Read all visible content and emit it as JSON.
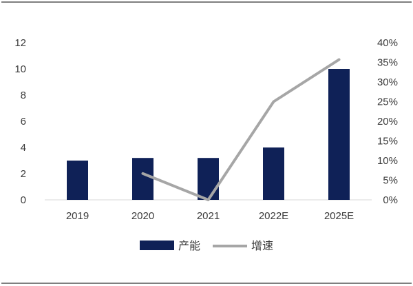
{
  "chart_data": {
    "type": "bar",
    "title": "",
    "xlabel": "",
    "categories": [
      "2019",
      "2020",
      "2021",
      "2022E",
      "2025E"
    ],
    "series": [
      {
        "name": "产能",
        "kind": "bar",
        "axis": "left",
        "color": "#0f2157",
        "values": [
          3.0,
          3.2,
          3.2,
          4.0,
          10.0
        ]
      },
      {
        "name": "增速",
        "kind": "line",
        "axis": "right",
        "color": "#a6a6a6",
        "values": [
          null,
          6.7,
          0.0,
          25.0,
          35.7
        ]
      }
    ],
    "y_left": {
      "ylim": [
        0,
        12
      ],
      "ticks": [
        "0",
        "2",
        "4",
        "6",
        "8",
        "10",
        "12"
      ]
    },
    "y_right": {
      "ylim": [
        0,
        40
      ],
      "ticks": [
        "0%",
        "5%",
        "10%",
        "15%",
        "20%",
        "25%",
        "30%",
        "35%",
        "40%"
      ]
    },
    "legend": {
      "position": "bottom",
      "bar_label": "产能",
      "line_label": "增速"
    },
    "grid": false
  }
}
